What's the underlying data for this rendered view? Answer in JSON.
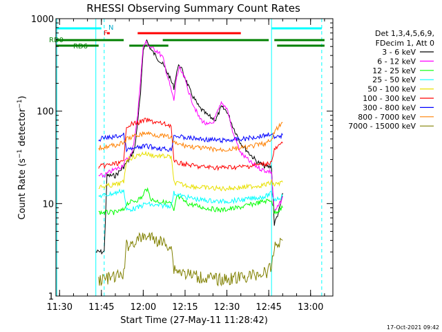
{
  "chart_data": {
    "type": "line",
    "title": "RHESSI Observing Summary Count Rates",
    "xlabel": "Start Time (27-May-11 11:28:42)",
    "ylabel": "Count Rate (s⁻¹ detector⁻¹)",
    "ylabel_main": "Count Rate (s",
    "ylabel_sup1": "−1",
    "ylabel_mid": " detector",
    "ylabel_sup2": "−1",
    "ylabel_end": ")",
    "yscale": "log",
    "ylim": [
      1,
      1000
    ],
    "xlim": [
      "11:28:42",
      "13:08"
    ],
    "x_tick_labels": [
      "11:30",
      "11:45",
      "12:00",
      "12:15",
      "12:30",
      "12:45",
      "13:00"
    ],
    "y_tick_labels": [
      "1",
      "10",
      "100",
      "1000"
    ],
    "legend_header": [
      "Det 1,3,4,5,6,9,",
      "FDecim 1, Att 0"
    ],
    "legend_placement": "top-right",
    "timestamp": "17-Oct-2021 09:42",
    "annotations": {
      "N": "N",
      "F": "F",
      "RD0": "RD0",
      "RD6": "RD6"
    },
    "flag_bars": [
      {
        "label": "N",
        "color": "#00ffff",
        "segments": [
          [
            "11:28:42",
            "11:45"
          ],
          [
            "12:46",
            "13:04"
          ]
        ]
      },
      {
        "label": "F",
        "color": "#ff0000",
        "segments": [
          [
            "11:47",
            "11:48"
          ],
          [
            "11:58",
            "12:35"
          ]
        ]
      },
      {
        "label": "RD0",
        "color": "#008000",
        "segments": [
          [
            "11:28:42",
            "11:53"
          ],
          [
            "12:07",
            "12:45"
          ],
          [
            "12:47",
            "13:05"
          ]
        ]
      },
      {
        "label": "RD6",
        "color": "#008000",
        "segments": [
          [
            "11:28:42",
            "11:44"
          ],
          [
            "11:55",
            "12:09"
          ],
          [
            "12:48",
            "13:05"
          ]
        ]
      }
    ],
    "vlines": [
      {
        "color": "#00ffff",
        "style": "solid",
        "x": [
          "11:29",
          "11:43",
          "12:46"
        ]
      },
      {
        "color": "#00ffff",
        "style": "dashed",
        "x": [
          "11:46",
          "13:04"
        ]
      }
    ],
    "series": [
      {
        "name": "3 - 6 keV",
        "color": "#000000",
        "points": [
          [
            "11:43",
            3
          ],
          [
            "11:46",
            3
          ],
          [
            "11:47",
            20
          ],
          [
            "11:50",
            20
          ],
          [
            "11:53",
            25
          ],
          [
            "11:55",
            30
          ],
          [
            "11:57",
            40
          ],
          [
            "11:59",
            150
          ],
          [
            "12:00",
            450
          ],
          [
            "12:01",
            600
          ],
          [
            "12:03",
            450
          ],
          [
            "12:05",
            380
          ],
          [
            "12:07",
            320
          ],
          [
            "12:09",
            250
          ],
          [
            "12:11",
            180
          ],
          [
            "12:12",
            270
          ],
          [
            "12:13",
            320
          ],
          [
            "12:15",
            230
          ],
          [
            "12:17",
            160
          ],
          [
            "12:20",
            110
          ],
          [
            "12:23",
            90
          ],
          [
            "12:26",
            80
          ],
          [
            "12:28",
            110
          ],
          [
            "12:30",
            100
          ],
          [
            "12:32",
            70
          ],
          [
            "12:35",
            45
          ],
          [
            "12:38",
            35
          ],
          [
            "12:41",
            28
          ],
          [
            "12:44",
            25
          ],
          [
            "12:46",
            25
          ],
          [
            "12:47",
            6
          ],
          [
            "12:49",
            9
          ],
          [
            "12:50",
            13
          ]
        ]
      },
      {
        "name": "6 - 12 keV",
        "color": "#ff00ff",
        "points": [
          [
            "11:44",
            20
          ],
          [
            "11:46",
            20
          ],
          [
            "11:48",
            22
          ],
          [
            "11:52",
            25
          ],
          [
            "11:56",
            35
          ],
          [
            "11:58",
            90
          ],
          [
            "11:59",
            220
          ],
          [
            "12:00",
            500
          ],
          [
            "12:01",
            550
          ],
          [
            "12:03",
            480
          ],
          [
            "12:05",
            450
          ],
          [
            "12:07",
            380
          ],
          [
            "12:09",
            220
          ],
          [
            "12:11",
            130
          ],
          [
            "12:12",
            240
          ],
          [
            "12:13",
            290
          ],
          [
            "12:15",
            220
          ],
          [
            "12:17",
            140
          ],
          [
            "12:20",
            85
          ],
          [
            "12:23",
            70
          ],
          [
            "12:25",
            75
          ],
          [
            "12:28",
            120
          ],
          [
            "12:30",
            110
          ],
          [
            "12:32",
            60
          ],
          [
            "12:35",
            35
          ],
          [
            "12:39",
            27
          ],
          [
            "12:43",
            23
          ],
          [
            "12:46",
            22
          ],
          [
            "12:47",
            8
          ],
          [
            "12:49",
            10
          ],
          [
            "12:50",
            12
          ]
        ]
      },
      {
        "name": "12 - 25 keV",
        "color": "#00ff00",
        "points": [
          [
            "11:44",
            8
          ],
          [
            "11:50",
            8
          ],
          [
            "11:53",
            8.5
          ],
          [
            "11:54",
            10
          ],
          [
            "11:58",
            11
          ],
          [
            "12:00",
            12
          ],
          [
            "12:01",
            15
          ],
          [
            "12:03",
            11
          ],
          [
            "12:06",
            10.5
          ],
          [
            "12:10",
            10
          ],
          [
            "12:11",
            8
          ],
          [
            "12:12",
            12
          ],
          [
            "12:16",
            10
          ],
          [
            "12:22",
            9
          ],
          [
            "12:28",
            8.5
          ],
          [
            "12:34",
            9
          ],
          [
            "12:40",
            10
          ],
          [
            "12:46",
            11
          ],
          [
            "12:47",
            8
          ],
          [
            "12:50",
            9
          ]
        ]
      },
      {
        "name": "25 - 50 keV",
        "color": "#00ffff",
        "points": [
          [
            "11:44",
            12
          ],
          [
            "11:50",
            13
          ],
          [
            "11:53",
            14
          ],
          [
            "11:54",
            8.5
          ],
          [
            "11:58",
            9
          ],
          [
            "12:01",
            10
          ],
          [
            "12:04",
            9.5
          ],
          [
            "12:10",
            9.5
          ],
          [
            "12:11",
            13
          ],
          [
            "12:14",
            12
          ],
          [
            "12:20",
            11
          ],
          [
            "12:28",
            10.5
          ],
          [
            "12:36",
            11
          ],
          [
            "12:44",
            12
          ],
          [
            "12:46",
            13
          ],
          [
            "12:47",
            11
          ],
          [
            "12:50",
            12
          ]
        ]
      },
      {
        "name": "50 - 100 keV",
        "color": "#e8e000",
        "points": [
          [
            "11:44",
            15
          ],
          [
            "11:50",
            16
          ],
          [
            "11:53",
            17
          ],
          [
            "11:54",
            30
          ],
          [
            "11:58",
            33
          ],
          [
            "12:00",
            35
          ],
          [
            "12:04",
            33
          ],
          [
            "12:10",
            32
          ],
          [
            "12:11",
            17
          ],
          [
            "12:14",
            16
          ],
          [
            "12:20",
            15
          ],
          [
            "12:28",
            14.5
          ],
          [
            "12:36",
            15
          ],
          [
            "12:44",
            16
          ],
          [
            "12:46",
            17
          ],
          [
            "12:47",
            16
          ],
          [
            "12:50",
            17
          ]
        ]
      },
      {
        "name": "100 - 300 keV",
        "color": "#ff0000",
        "points": [
          [
            "11:44",
            25
          ],
          [
            "11:50",
            27
          ],
          [
            "11:53",
            28
          ],
          [
            "11:54",
            70
          ],
          [
            "11:58",
            75
          ],
          [
            "12:01",
            80
          ],
          [
            "12:05",
            75
          ],
          [
            "12:10",
            70
          ],
          [
            "12:11",
            28
          ],
          [
            "12:14",
            27
          ],
          [
            "12:20",
            25
          ],
          [
            "12:28",
            24.5
          ],
          [
            "12:36",
            25
          ],
          [
            "12:44",
            27
          ],
          [
            "12:46",
            28
          ],
          [
            "12:47",
            38
          ],
          [
            "12:50",
            45
          ]
        ]
      },
      {
        "name": "300 - 800 keV",
        "color": "#0000ff",
        "points": [
          [
            "11:44",
            50
          ],
          [
            "11:50",
            53
          ],
          [
            "11:53",
            55
          ],
          [
            "11:54",
            38
          ],
          [
            "11:58",
            40
          ],
          [
            "12:01",
            42
          ],
          [
            "12:05",
            40
          ],
          [
            "12:10",
            38
          ],
          [
            "12:11",
            55
          ],
          [
            "12:14",
            52
          ],
          [
            "12:20",
            50
          ],
          [
            "12:28",
            48
          ],
          [
            "12:36",
            50
          ],
          [
            "12:44",
            55
          ],
          [
            "12:46",
            58
          ],
          [
            "12:47",
            50
          ],
          [
            "12:50",
            55
          ]
        ]
      },
      {
        "name": "800 - 7000 keV",
        "color": "#ff8000",
        "points": [
          [
            "11:44",
            40
          ],
          [
            "11:50",
            43
          ],
          [
            "11:53",
            45
          ],
          [
            "11:54",
            50
          ],
          [
            "11:58",
            55
          ],
          [
            "12:01",
            58
          ],
          [
            "12:05",
            55
          ],
          [
            "12:10",
            52
          ],
          [
            "12:11",
            45
          ],
          [
            "12:14",
            43
          ],
          [
            "12:20",
            40
          ],
          [
            "12:28",
            38
          ],
          [
            "12:36",
            40
          ],
          [
            "12:44",
            45
          ],
          [
            "12:46",
            48
          ],
          [
            "12:47",
            60
          ],
          [
            "12:50",
            75
          ]
        ]
      },
      {
        "name": "7000 - 15000 keV",
        "color": "#808000",
        "points": [
          [
            "11:44",
            1.5
          ],
          [
            "11:50",
            1.6
          ],
          [
            "11:53",
            1.7
          ],
          [
            "11:54",
            3.5
          ],
          [
            "11:58",
            4
          ],
          [
            "12:01",
            4.5
          ],
          [
            "12:05",
            4
          ],
          [
            "12:10",
            3.5
          ],
          [
            "12:11",
            2
          ],
          [
            "12:14",
            1.8
          ],
          [
            "12:20",
            1.6
          ],
          [
            "12:28",
            1.5
          ],
          [
            "12:36",
            1.6
          ],
          [
            "12:44",
            1.8
          ],
          [
            "12:46",
            2
          ],
          [
            "12:47",
            3.5
          ],
          [
            "12:50",
            4
          ]
        ]
      }
    ]
  }
}
